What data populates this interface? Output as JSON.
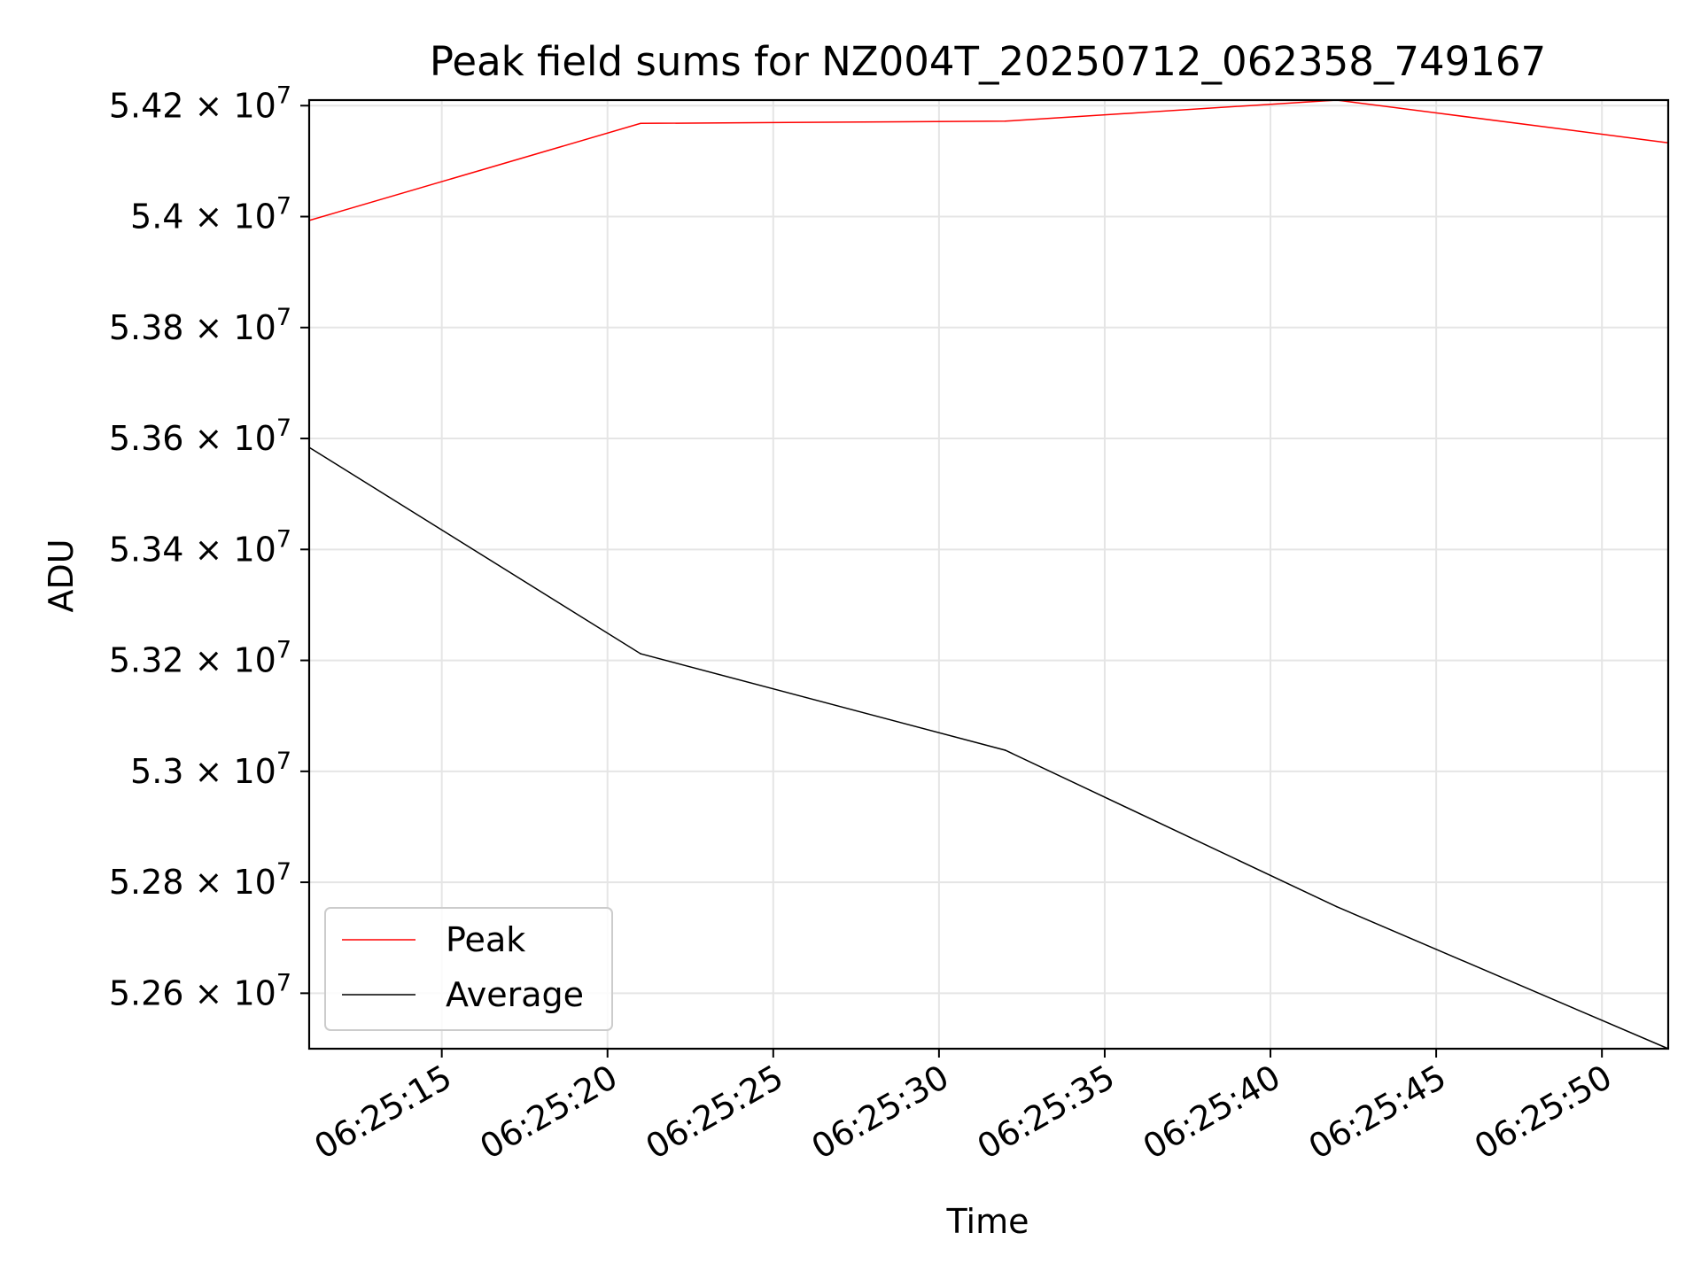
{
  "chart_data": {
    "type": "line",
    "title": "Peak field sums for NZ004T_20250712_062358_749167",
    "xlabel": "Time",
    "ylabel": "ADU",
    "x": [
      "06:25:11",
      "06:25:21",
      "06:25:32",
      "06:25:42",
      "06:25:52"
    ],
    "xlim": [
      "06:25:11",
      "06:25:52"
    ],
    "ylim": [
      52500000,
      54210000
    ],
    "y_ticks": [
      {
        "value": 52600000,
        "mantissa": "5.26"
      },
      {
        "value": 52800000,
        "mantissa": "5.28"
      },
      {
        "value": 53000000,
        "mantissa": "5.3"
      },
      {
        "value": 53200000,
        "mantissa": "5.32"
      },
      {
        "value": 53400000,
        "mantissa": "5.34"
      },
      {
        "value": 53600000,
        "mantissa": "5.36"
      },
      {
        "value": 53800000,
        "mantissa": "5.38"
      },
      {
        "value": 54000000,
        "mantissa": "5.4"
      },
      {
        "value": 54200000,
        "mantissa": "5.42"
      }
    ],
    "y_tick_times": "× 10",
    "y_tick_exponent": "7",
    "x_ticks": [
      "06:25:15",
      "06:25:20",
      "06:25:25",
      "06:25:30",
      "06:25:35",
      "06:25:40",
      "06:25:45",
      "06:25:50"
    ],
    "series": [
      {
        "name": "Peak",
        "color": "#ff0000",
        "values": [
          53993000,
          54168000,
          54172000,
          54210000,
          54133000
        ]
      },
      {
        "name": "Average",
        "color": "#000000",
        "values": [
          53584000,
          53212000,
          53038000,
          52756000,
          52500000
        ]
      }
    ],
    "grid": true,
    "legend_position": "lower-left"
  }
}
